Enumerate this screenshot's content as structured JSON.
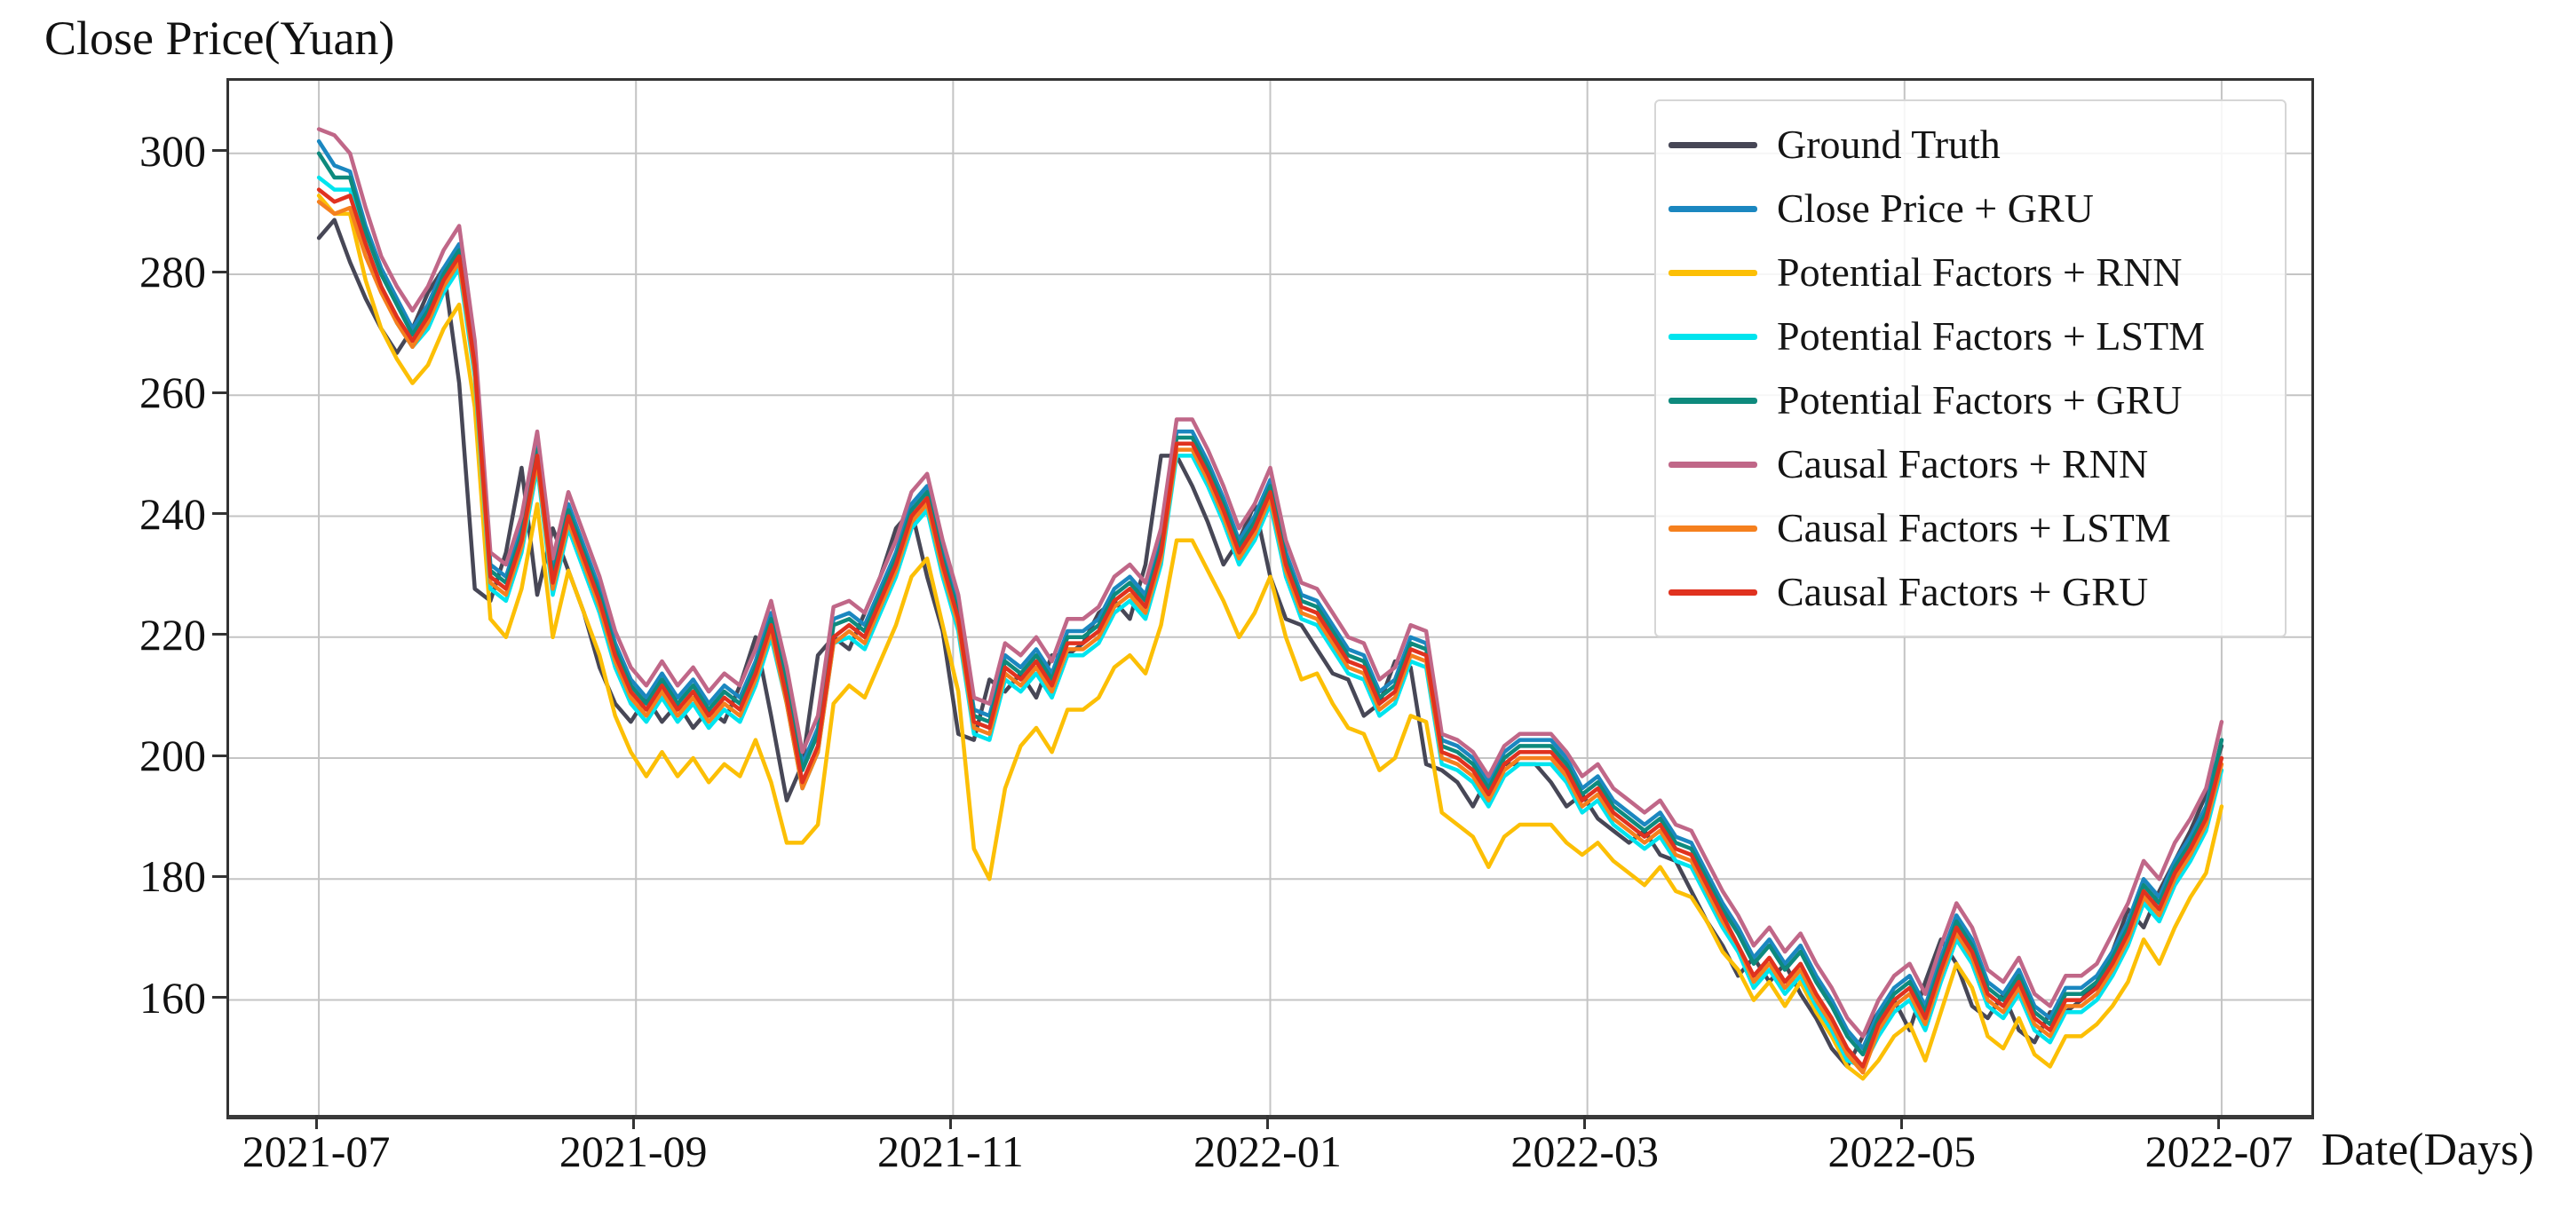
{
  "chart_data": {
    "type": "line",
    "title": "Close Price(Yuan)",
    "xlabel": "Date(Days)",
    "ylabel": "Close Price(Yuan)",
    "x_tick_labels": [
      "2021-07",
      "2021-09",
      "2021-11",
      "2022-01",
      "2022-03",
      "2022-05",
      "2022-07"
    ],
    "y_ticks": [
      300,
      280,
      260,
      240,
      220,
      200,
      180,
      160
    ],
    "ylim": [
      141,
      312
    ],
    "x_data_margin_frac": 0.0431,
    "grid": true,
    "grid_color": "#c4c4c4",
    "legend_position": "upper right",
    "n_points": 123,
    "x_unit": "trading days, 2021-07-01 to 2022-07-01, sampled every 2 days",
    "series": [
      {
        "name": "Ground Truth",
        "color": "#474756",
        "values": [
          286,
          289,
          282,
          276,
          271,
          267,
          271,
          277,
          281,
          262,
          228,
          226,
          234,
          248,
          227,
          238,
          231,
          224,
          215,
          209,
          206,
          210,
          206,
          209,
          205,
          208,
          206,
          212,
          220,
          207,
          193,
          199,
          217,
          220,
          218,
          224,
          230,
          238,
          241,
          230,
          221,
          204,
          203,
          213,
          211,
          214,
          210,
          217,
          217,
          219,
          224,
          226,
          223,
          232,
          250,
          250,
          245,
          239,
          232,
          236,
          242,
          230,
          223,
          222,
          218,
          214,
          213,
          207,
          209,
          216,
          215,
          199,
          198,
          196,
          192,
          197,
          199,
          199,
          199,
          196,
          192,
          194,
          190,
          188,
          186,
          188,
          184,
          183,
          178,
          173,
          169,
          164,
          167,
          163,
          166,
          161,
          157,
          152,
          149,
          154,
          158,
          160,
          155,
          163,
          170,
          166,
          159,
          157,
          161,
          155,
          153,
          158,
          158,
          160,
          163,
          168,
          175,
          172,
          178,
          183,
          188,
          194,
          202
        ]
      },
      {
        "name": "Close Price + GRU",
        "color": "#1b87c0",
        "values": [
          302,
          298,
          297,
          288,
          281,
          276,
          271,
          275,
          281,
          285,
          267,
          232,
          230,
          238,
          252,
          231,
          242,
          235,
          228,
          219,
          213,
          210,
          214,
          210,
          213,
          209,
          212,
          210,
          216,
          224,
          213,
          199,
          205,
          223,
          224,
          222,
          228,
          234,
          242,
          245,
          234,
          225,
          208,
          207,
          217,
          215,
          218,
          214,
          221,
          221,
          223,
          228,
          230,
          227,
          236,
          254,
          254,
          249,
          243,
          236,
          240,
          246,
          234,
          227,
          226,
          222,
          218,
          217,
          211,
          213,
          220,
          219,
          203,
          202,
          200,
          196,
          201,
          203,
          203,
          203,
          200,
          195,
          197,
          193,
          191,
          189,
          191,
          187,
          186,
          181,
          176,
          172,
          167,
          170,
          166,
          169,
          164,
          160,
          155,
          152,
          158,
          162,
          164,
          159,
          167,
          174,
          170,
          163,
          161,
          165,
          159,
          157,
          162,
          162,
          164,
          168,
          173,
          180,
          177,
          183,
          187,
          192,
          203
        ]
      },
      {
        "name": "Potential Factors + RNN",
        "color": "#fcbf05",
        "values": [
          293,
          290,
          290,
          279,
          271,
          266,
          262,
          265,
          271,
          275,
          258,
          223,
          220,
          228,
          242,
          220,
          231,
          224,
          217,
          207,
          201,
          197,
          201,
          197,
          200,
          196,
          199,
          197,
          203,
          196,
          186,
          186,
          189,
          209,
          212,
          210,
          216,
          222,
          230,
          233,
          222,
          211,
          185,
          180,
          195,
          202,
          205,
          201,
          208,
          208,
          210,
          215,
          217,
          214,
          222,
          236,
          236,
          231,
          226,
          220,
          224,
          230,
          220,
          213,
          214,
          209,
          205,
          204,
          198,
          200,
          207,
          206,
          191,
          189,
          187,
          182,
          187,
          189,
          189,
          189,
          186,
          184,
          186,
          183,
          181,
          179,
          182,
          178,
          177,
          173,
          168,
          165,
          160,
          163,
          159,
          163,
          158,
          154,
          149,
          147,
          150,
          154,
          156,
          150,
          158,
          166,
          162,
          154,
          152,
          157,
          151,
          149,
          154,
          154,
          156,
          159,
          163,
          170,
          166,
          172,
          177,
          181,
          192
        ]
      },
      {
        "name": "Potential Factors + LSTM",
        "color": "#00e4ee",
        "values": [
          296,
          294,
          294,
          285,
          278,
          272,
          268,
          271,
          277,
          281,
          263,
          228,
          226,
          234,
          248,
          227,
          238,
          231,
          224,
          215,
          209,
          206,
          210,
          206,
          209,
          205,
          208,
          206,
          212,
          220,
          209,
          195,
          201,
          219,
          220,
          218,
          224,
          230,
          238,
          241,
          230,
          221,
          204,
          203,
          213,
          211,
          214,
          210,
          217,
          217,
          219,
          224,
          226,
          223,
          232,
          250,
          250,
          245,
          239,
          232,
          236,
          242,
          230,
          223,
          222,
          218,
          214,
          213,
          207,
          209,
          216,
          215,
          199,
          198,
          196,
          192,
          197,
          199,
          199,
          199,
          196,
          191,
          193,
          189,
          187,
          185,
          187,
          183,
          182,
          177,
          172,
          168,
          162,
          165,
          161,
          164,
          159,
          155,
          150,
          149,
          154,
          158,
          160,
          155,
          163,
          170,
          166,
          159,
          157,
          161,
          155,
          153,
          158,
          158,
          160,
          164,
          169,
          176,
          173,
          179,
          183,
          188,
          198
        ]
      },
      {
        "name": "Potential Factors + GRU",
        "color": "#0e8a7d",
        "values": [
          300,
          296,
          296,
          287,
          280,
          275,
          270,
          274,
          280,
          284,
          266,
          231,
          229,
          237,
          251,
          230,
          241,
          234,
          227,
          218,
          212,
          209,
          213,
          209,
          212,
          208,
          211,
          209,
          215,
          223,
          212,
          198,
          204,
          222,
          223,
          221,
          227,
          233,
          241,
          244,
          233,
          224,
          207,
          206,
          216,
          214,
          217,
          213,
          220,
          220,
          222,
          227,
          229,
          226,
          235,
          253,
          253,
          248,
          242,
          235,
          239,
          245,
          233,
          226,
          225,
          221,
          217,
          216,
          210,
          212,
          219,
          218,
          202,
          201,
          199,
          195,
          200,
          202,
          202,
          202,
          199,
          194,
          196,
          192,
          190,
          188,
          190,
          186,
          185,
          180,
          175,
          171,
          166,
          169,
          165,
          168,
          163,
          159,
          154,
          151,
          157,
          161,
          163,
          158,
          166,
          173,
          169,
          162,
          160,
          164,
          158,
          156,
          161,
          161,
          163,
          167,
          172,
          179,
          176,
          182,
          186,
          191,
          203
        ]
      },
      {
        "name": "Causal Factors + RNN",
        "color": "#c06788",
        "values": [
          304,
          303,
          300,
          291,
          283,
          278,
          274,
          278,
          284,
          288,
          269,
          234,
          232,
          240,
          254,
          233,
          244,
          237,
          230,
          221,
          215,
          212,
          216,
          212,
          215,
          211,
          214,
          212,
          218,
          226,
          215,
          201,
          207,
          225,
          226,
          224,
          230,
          236,
          244,
          247,
          236,
          227,
          210,
          209,
          219,
          217,
          220,
          216,
          223,
          223,
          225,
          230,
          232,
          229,
          238,
          256,
          256,
          251,
          245,
          238,
          242,
          248,
          236,
          229,
          228,
          224,
          220,
          219,
          213,
          215,
          222,
          221,
          204,
          203,
          201,
          197,
          202,
          204,
          204,
          204,
          201,
          197,
          199,
          195,
          193,
          191,
          193,
          189,
          188,
          183,
          178,
          174,
          169,
          172,
          168,
          171,
          166,
          162,
          157,
          154,
          160,
          164,
          166,
          161,
          169,
          176,
          172,
          165,
          163,
          167,
          161,
          159,
          164,
          164,
          166,
          171,
          176,
          183,
          180,
          186,
          190,
          195,
          206
        ]
      },
      {
        "name": "Causal Factors + LSTM",
        "color": "#f5801e",
        "values": [
          292,
          290,
          291,
          283,
          277,
          272,
          268,
          272,
          278,
          282,
          264,
          229,
          227,
          235,
          249,
          228,
          239,
          232,
          225,
          216,
          210,
          207,
          211,
          207,
          210,
          206,
          209,
          207,
          213,
          221,
          209,
          195,
          201,
          219,
          221,
          219,
          225,
          231,
          239,
          242,
          231,
          222,
          205,
          204,
          214,
          212,
          215,
          211,
          218,
          218,
          220,
          225,
          227,
          224,
          233,
          251,
          251,
          246,
          240,
          233,
          237,
          243,
          231,
          224,
          223,
          219,
          215,
          214,
          208,
          210,
          217,
          216,
          200,
          199,
          197,
          193,
          198,
          200,
          200,
          200,
          197,
          192,
          194,
          190,
          188,
          186,
          188,
          184,
          183,
          178,
          173,
          169,
          163,
          166,
          162,
          165,
          160,
          156,
          151,
          148,
          155,
          159,
          161,
          156,
          164,
          171,
          167,
          160,
          158,
          162,
          156,
          154,
          159,
          159,
          161,
          165,
          170,
          177,
          174,
          180,
          184,
          189,
          199
        ]
      },
      {
        "name": "Causal Factors + GRU",
        "color": "#e0321f",
        "values": [
          294,
          292,
          293,
          285,
          278,
          273,
          269,
          273,
          279,
          283,
          265,
          230,
          228,
          236,
          250,
          229,
          240,
          233,
          226,
          217,
          211,
          208,
          212,
          208,
          211,
          207,
          210,
          208,
          214,
          222,
          210,
          196,
          202,
          220,
          222,
          220,
          226,
          232,
          240,
          243,
          232,
          223,
          206,
          205,
          215,
          213,
          216,
          212,
          219,
          219,
          221,
          226,
          228,
          225,
          234,
          252,
          252,
          247,
          241,
          234,
          238,
          244,
          232,
          225,
          224,
          220,
          216,
          215,
          209,
          211,
          218,
          217,
          201,
          200,
          198,
          194,
          199,
          201,
          201,
          201,
          198,
          193,
          195,
          191,
          189,
          187,
          189,
          185,
          184,
          179,
          174,
          169,
          164,
          167,
          163,
          166,
          161,
          157,
          152,
          149,
          156,
          160,
          162,
          157,
          165,
          172,
          168,
          161,
          159,
          163,
          157,
          155,
          160,
          160,
          162,
          166,
          171,
          178,
          175,
          181,
          185,
          190,
          200
        ]
      }
    ]
  }
}
